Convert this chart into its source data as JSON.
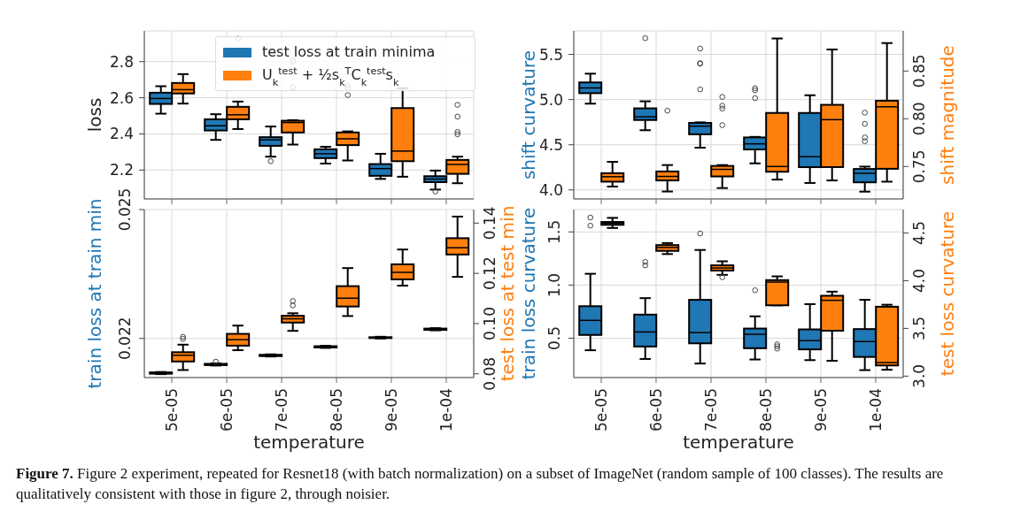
{
  "chart_data": [
    {
      "type": "box",
      "ylabel": "loss",
      "categories": [
        "5e-05",
        "6e-05",
        "7e-05",
        "8e-05",
        "9e-05",
        "1e-04"
      ],
      "ylim": [
        2.04,
        2.97
      ],
      "yticks": [
        2.2,
        2.4,
        2.6,
        2.8
      ],
      "grid": true,
      "legend": "top right",
      "tick_labels": "y",
      "annotations": [
        "Figure 7. Figure 2 experiment, repeated for Resnet18 (with batch normalization) on a subset of ImageNet (random sample of 100 classes). The results are qualitatively consistent with those in figure 2, through noisier."
      ],
      "series": [
        {
          "name": "test loss at train minima",
          "color": "#1f77b4",
          "boxes": [
            {
              "low": 2.512,
              "q1": 2.566,
              "median": 2.596,
              "q3": 2.628,
              "high": 2.664
            },
            {
              "low": 2.367,
              "q1": 2.419,
              "median": 2.445,
              "q3": 2.481,
              "high": 2.509
            },
            {
              "low": 2.274,
              "q1": 2.334,
              "median": 2.367,
              "q3": 2.382,
              "high": 2.441,
              "outliers": [
                2.249
              ]
            },
            {
              "low": 2.236,
              "q1": 2.266,
              "median": 2.29,
              "q3": 2.315,
              "high": 2.329
            },
            {
              "low": 2.151,
              "q1": 2.168,
              "median": 2.208,
              "q3": 2.233,
              "high": 2.29
            },
            {
              "low": 2.092,
              "q1": 2.133,
              "median": 2.15,
              "q3": 2.166,
              "high": 2.197,
              "outliers": [
                2.081
              ]
            }
          ]
        },
        {
          "name": "U$_{k}$$^{test}$ + ½s$_{k}$$^{T}$C$_{k}$$^{test}$s$_{k}$",
          "color": "#ff7f0e",
          "boxes": [
            {
              "low": 2.568,
              "q1": 2.624,
              "median": 2.645,
              "q3": 2.682,
              "high": 2.731
            },
            {
              "low": 2.427,
              "q1": 2.481,
              "median": 2.506,
              "q3": 2.55,
              "high": 2.579,
              "outliers": [
                2.927
              ]
            },
            {
              "low": 2.341,
              "q1": 2.408,
              "median": 2.463,
              "q3": 2.473,
              "high": 2.476,
              "outliers": [
                2.81,
                2.8,
                2.658
              ]
            },
            {
              "low": 2.253,
              "q1": 2.338,
              "median": 2.373,
              "q3": 2.408,
              "high": 2.414,
              "outliers": [
                2.669,
                2.656,
                2.615
              ]
            },
            {
              "low": 2.163,
              "q1": 2.249,
              "median": 2.305,
              "q3": 2.543,
              "high": 2.653
            },
            {
              "low": 2.127,
              "q1": 2.179,
              "median": 2.231,
              "q3": 2.256,
              "high": 2.274,
              "outliers": [
                2.561,
                2.496,
                2.411,
                2.398
              ]
            }
          ]
        }
      ]
    },
    {
      "type": "box",
      "ylabel": "shift curvature",
      "y2label": "shift magnitude",
      "categories": [
        "5e-05",
        "6e-05",
        "7e-05",
        "8e-05",
        "9e-05",
        "1e-04"
      ],
      "ylim": [
        3.9,
        5.76
      ],
      "yticks": [
        {
          "value": 4.0,
          "label": "4.0"
        },
        4.5,
        {
          "value": 5.0,
          "label": "5.0"
        },
        5.5
      ],
      "y2lim": [
        0.716,
        0.892
      ],
      "y2ticks": [
        0.75,
        {
          "value": 0.8,
          "label": "0.80"
        },
        0.85
      ],
      "grid": true,
      "tick_labels": "y",
      "series": [
        {
          "color": "#1f77b4",
          "boxes": [
            {
              "low": 4.955,
              "q1": 5.071,
              "median": 5.129,
              "q3": 5.19,
              "high": 5.287
            },
            {
              "low": 4.661,
              "q1": 4.774,
              "median": 4.81,
              "q3": 4.903,
              "high": 4.981,
              "outliers": [
                5.68
              ]
            },
            {
              "low": 4.468,
              "q1": 4.616,
              "median": 4.706,
              "q3": 4.742,
              "high": 4.748,
              "outliers": [
                5.565,
                5.403,
                5.397,
                5.113
              ]
            },
            {
              "low": 4.294,
              "q1": 4.448,
              "median": 4.51,
              "q3": 4.581,
              "high": 4.587,
              "outliers": [
                5.126,
                5.103,
                5.016
              ]
            },
            {
              "low": 4.077,
              "q1": 4.252,
              "median": 4.368,
              "q3": 4.852,
              "high": 5.048
            },
            {
              "low": 3.981,
              "q1": 4.084,
              "median": 4.184,
              "q3": 4.232,
              "high": 4.258,
              "outliers": [
                4.855,
                4.732,
                4.581,
                4.539
              ]
            }
          ]
        },
        {
          "color": "#ff7f0e",
          "axis": "y2",
          "boxes": [
            {
              "low": 0.729,
              "q1": 0.7341,
              "median": 0.7393,
              "q3": 0.743,
              "high": 0.7549
            },
            {
              "low": 0.7238,
              "q1": 0.7354,
              "median": 0.7396,
              "q3": 0.7448,
              "high": 0.7515,
              "outliers": [
                0.8085
              ]
            },
            {
              "low": 0.7274,
              "q1": 0.7396,
              "median": 0.747,
              "q3": 0.7506,
              "high": 0.7515,
              "outliers": [
                0.8229,
                0.8137,
                0.8107,
                0.7933
              ]
            },
            {
              "low": 0.7363,
              "q1": 0.7445,
              "median": 0.75,
              "q3": 0.8061,
              "high": 0.8841
            },
            {
              "low": 0.7354,
              "q1": 0.7494,
              "median": 0.7991,
              "q3": 0.8146,
              "high": 0.8726
            },
            {
              "low": 0.7341,
              "q1": 0.7476,
              "median": 0.8125,
              "q3": 0.8189,
              "high": 0.8793
            }
          ]
        }
      ]
    },
    {
      "type": "box",
      "xlabel": "temperature",
      "ylabel": "train loss at train min",
      "y2label": "test loss at test min",
      "categories": [
        "5e-05",
        "6e-05",
        "7e-05",
        "8e-05",
        "9e-05",
        "1e-04"
      ],
      "ylim": [
        0.02109,
        0.025
      ],
      "yticks": [
        0.022,
        0.025
      ],
      "y2lim": [
        0.0785,
        0.1454
      ],
      "y2ticks": [
        {
          "value": 0.08,
          "label": "0.08"
        },
        {
          "value": 0.1,
          "label": "0.10"
        },
        0.12,
        0.14
      ],
      "grid": true,
      "series": [
        {
          "color": "#1f77b4",
          "boxes": [
            {
              "low": 0.02117,
              "q1": 0.02118,
              "median": 0.02119,
              "q3": 0.02121,
              "high": 0.02122
            },
            {
              "low": 0.02137,
              "q1": 0.02138,
              "median": 0.02139,
              "q3": 0.02141,
              "high": 0.02142,
              "outliers": [
                0.02146
              ]
            },
            {
              "low": 0.02158,
              "q1": 0.02159,
              "median": 0.0216,
              "q3": 0.02162,
              "high": 0.02163
            },
            {
              "low": 0.02178,
              "q1": 0.02179,
              "median": 0.02181,
              "q3": 0.02182,
              "high": 0.02183
            },
            {
              "low": 0.022,
              "q1": 0.02201,
              "median": 0.02202,
              "q3": 0.02203,
              "high": 0.02204
            },
            {
              "low": 0.02219,
              "q1": 0.0222,
              "median": 0.02221,
              "q3": 0.02223,
              "high": 0.02224
            }
          ]
        },
        {
          "color": "#ff7f0e",
          "axis": "y2",
          "boxes": [
            {
              "low": 0.0815,
              "q1": 0.0849,
              "median": 0.0874,
              "q3": 0.0886,
              "high": 0.0916,
              "outliers": [
                0.0947,
                0.0939
              ]
            },
            {
              "low": 0.0894,
              "q1": 0.0912,
              "median": 0.0936,
              "q3": 0.0959,
              "high": 0.0992
            },
            {
              "low": 0.0971,
              "q1": 0.1004,
              "median": 0.1019,
              "q3": 0.1031,
              "high": 0.1041,
              "outliers": [
                0.109,
                0.1072
              ]
            },
            {
              "low": 0.103,
              "q1": 0.1068,
              "median": 0.1101,
              "q3": 0.1149,
              "high": 0.1221
            },
            {
              "low": 0.1151,
              "q1": 0.1176,
              "median": 0.1204,
              "q3": 0.1236,
              "high": 0.1295
            },
            {
              "low": 0.1186,
              "q1": 0.1275,
              "median": 0.1302,
              "q3": 0.134,
              "high": 0.1426
            }
          ]
        }
      ]
    },
    {
      "type": "box",
      "xlabel": "temperature",
      "ylabel": "train loss curvature",
      "y2label": "test loss curvature",
      "categories": [
        "5e-05",
        "6e-05",
        "7e-05",
        "8e-05",
        "9e-05",
        "1e-04"
      ],
      "ylim": [
        0.13,
        1.71
      ],
      "yticks": [
        0.5,
        {
          "value": 1.0,
          "label": "1.0"
        },
        1.5
      ],
      "y2lim": [
        2.985,
        4.745
      ],
      "y2ticks": [
        {
          "value": 3.0,
          "label": "3.0"
        },
        3.5,
        {
          "value": 4.0,
          "label": "4.0"
        },
        4.5
      ],
      "grid": true,
      "series": [
        {
          "color": "#1f77b4",
          "boxes": [
            {
              "low": 0.387,
              "q1": 0.531,
              "median": 0.668,
              "q3": 0.801,
              "high": 1.106,
              "outliers": [
                1.635,
                1.559
              ]
            },
            {
              "low": 0.305,
              "q1": 0.422,
              "median": 0.559,
              "q3": 0.722,
              "high": 0.877,
              "outliers": [
                1.218,
                1.185
              ]
            },
            {
              "low": 0.262,
              "q1": 0.452,
              "median": 0.553,
              "q3": 0.861,
              "high": 1.33,
              "outliers": [
                1.485
              ]
            },
            {
              "low": 0.3,
              "q1": 0.406,
              "median": 0.537,
              "q3": 0.591,
              "high": 0.706,
              "outliers": [
                0.951
              ]
            },
            {
              "low": 0.294,
              "q1": 0.395,
              "median": 0.477,
              "q3": 0.583,
              "high": 0.82
            },
            {
              "low": 0.2,
              "q1": 0.324,
              "median": 0.469,
              "q3": 0.586,
              "high": 0.861
            }
          ]
        },
        {
          "color": "#ff7f0e",
          "axis": "y2",
          "boxes": [
            {
              "low": 4.552,
              "q1": 4.585,
              "median": 4.6,
              "q3": 4.615,
              "high": 4.658
            },
            {
              "low": 4.279,
              "q1": 4.312,
              "median": 4.348,
              "q3": 4.373,
              "high": 4.394
            },
            {
              "low": 4.061,
              "q1": 4.106,
              "median": 4.133,
              "q3": 4.161,
              "high": 4.203,
              "outliers": [
                4.036
              ]
            },
            {
              "low": 3.742,
              "q1": 3.742,
              "median": 3.985,
              "q3": 4.006,
              "high": 4.045,
              "outliers": [
                3.333,
                3.312,
                3.288
              ]
            },
            {
              "low": 3.161,
              "q1": 3.476,
              "median": 3.794,
              "q3": 3.842,
              "high": 3.885
            },
            {
              "low": 3.067,
              "q1": 3.112,
              "median": 3.142,
              "q3": 3.727,
              "high": 3.748
            }
          ]
        }
      ]
    }
  ]
}
